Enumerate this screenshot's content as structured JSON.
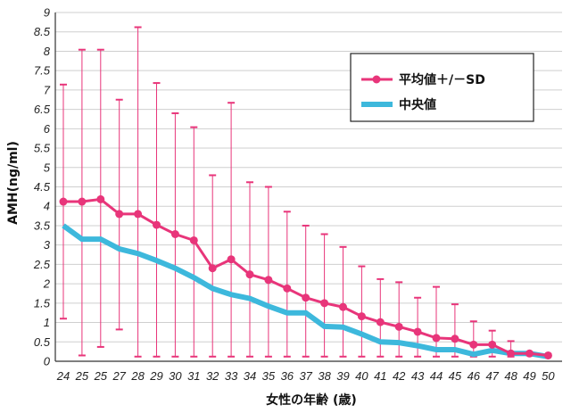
{
  "chart_data": {
    "type": "line",
    "xlabel": "女性の年齢 (歳)",
    "ylabel": "AMH(ng/ml)",
    "ylim": [
      0,
      9
    ],
    "y_ticks": [
      "0",
      "0.5",
      "1",
      "1.5",
      "2",
      "2.5",
      "3",
      "3.5",
      "4",
      "4.5",
      "5",
      "5.5",
      "6",
      "6.5",
      "7",
      "7.5",
      "8",
      "8.5",
      "9"
    ],
    "grid": "horizontal",
    "legend_position": "top-right",
    "categories": [
      "24",
      "25",
      "25",
      "27",
      "28",
      "29",
      "30",
      "31",
      "32",
      "33",
      "34",
      "35",
      "36",
      "37",
      "38",
      "39",
      "40",
      "41",
      "42",
      "43",
      "44",
      "45",
      "46",
      "47",
      "48",
      "49",
      "50"
    ],
    "series": [
      {
        "name": "平均値＋/－SD",
        "color": "#e8357a",
        "values": [
          4.12,
          4.12,
          4.18,
          3.8,
          3.8,
          3.52,
          3.28,
          3.12,
          2.4,
          2.63,
          2.24,
          2.1,
          1.88,
          1.64,
          1.5,
          1.4,
          1.16,
          1.01,
          0.89,
          0.76,
          0.6,
          0.58,
          0.43,
          0.43,
          0.2,
          0.2,
          0.15
        ],
        "error_upper": [
          7.14,
          8.04,
          8.04,
          6.75,
          8.62,
          7.18,
          6.4,
          6.04,
          4.8,
          6.67,
          4.62,
          4.5,
          3.86,
          3.5,
          3.28,
          2.95,
          2.45,
          2.12,
          2.04,
          1.64,
          1.92,
          1.47,
          1.03,
          0.79,
          0.52,
          0.22,
          0.18
        ],
        "error_lower": [
          1.1,
          0.15,
          0.37,
          0.82,
          0.12,
          0.12,
          0.12,
          0.12,
          0.12,
          0.12,
          0.12,
          0.12,
          0.12,
          0.12,
          0.12,
          0.12,
          0.12,
          0.12,
          0.12,
          0.12,
          0.12,
          0.12,
          0.12,
          0.12,
          0.12,
          0.15,
          0.12
        ]
      },
      {
        "name": "中央値",
        "color": "#3db8dc",
        "values": [
          3.5,
          3.15,
          3.15,
          2.9,
          2.78,
          2.6,
          2.4,
          2.16,
          1.88,
          1.72,
          1.62,
          1.42,
          1.25,
          1.25,
          0.9,
          0.88,
          0.7,
          0.5,
          0.48,
          0.4,
          0.3,
          0.3,
          0.18,
          0.28,
          0.2,
          0.2,
          0.12
        ]
      }
    ]
  }
}
